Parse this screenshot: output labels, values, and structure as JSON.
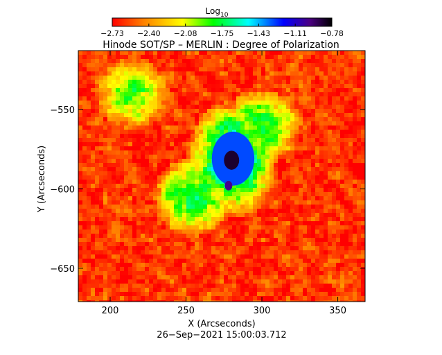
{
  "chart_data": {
    "type": "heatmap",
    "title": "Hinode SOT/SP – MERLIN : Degree of Polarization",
    "xlabel": "X (Arcseconds)",
    "ylabel": "Y (Arcseconds)",
    "xlim": [
      179,
      368
    ],
    "ylim": [
      -671,
      -513
    ],
    "x_ticks": [
      200,
      250,
      300,
      350
    ],
    "y_ticks": [
      -550,
      -600,
      -650
    ],
    "x_tick_labels": [
      "200",
      "250",
      "300",
      "350"
    ],
    "y_tick_labels": [
      "−550",
      "−600",
      "−650"
    ],
    "colorbar": {
      "title": "Log",
      "title_subscript": "10",
      "min": -2.73,
      "max": -0.78,
      "tick_labels": [
        "−2.73",
        "−2.40",
        "−2.08",
        "−1.75",
        "−1.43",
        "−1.11",
        "−0.78"
      ]
    },
    "footer": "26−Sep−2021 15:00:03.712",
    "features": [
      {
        "kind": "sunspot-umbra",
        "x": 280,
        "y": -582,
        "rx": 5,
        "ry": 6,
        "value": -0.85
      },
      {
        "kind": "penumbra",
        "x": 281,
        "y": -581,
        "rx": 14,
        "ry": 17,
        "value": -1.3
      },
      {
        "kind": "pore",
        "x": 278,
        "y": -598,
        "rx": 2.5,
        "ry": 3,
        "value": -1.0
      },
      {
        "kind": "plage",
        "x": 255,
        "y": -605,
        "value": -1.75
      },
      {
        "kind": "plage",
        "x": 300,
        "y": -560,
        "value": -1.8
      },
      {
        "kind": "plage",
        "x": 215,
        "y": -540,
        "value": -1.9
      }
    ],
    "grid": false
  },
  "colors": {
    "colormap": [
      "#ff0000",
      "#ff7f00",
      "#ffff00",
      "#00ff00",
      "#00ffff",
      "#0000ff",
      "#4b0082",
      "#000000"
    ],
    "background": "#ffffff",
    "axis": "#000000"
  }
}
